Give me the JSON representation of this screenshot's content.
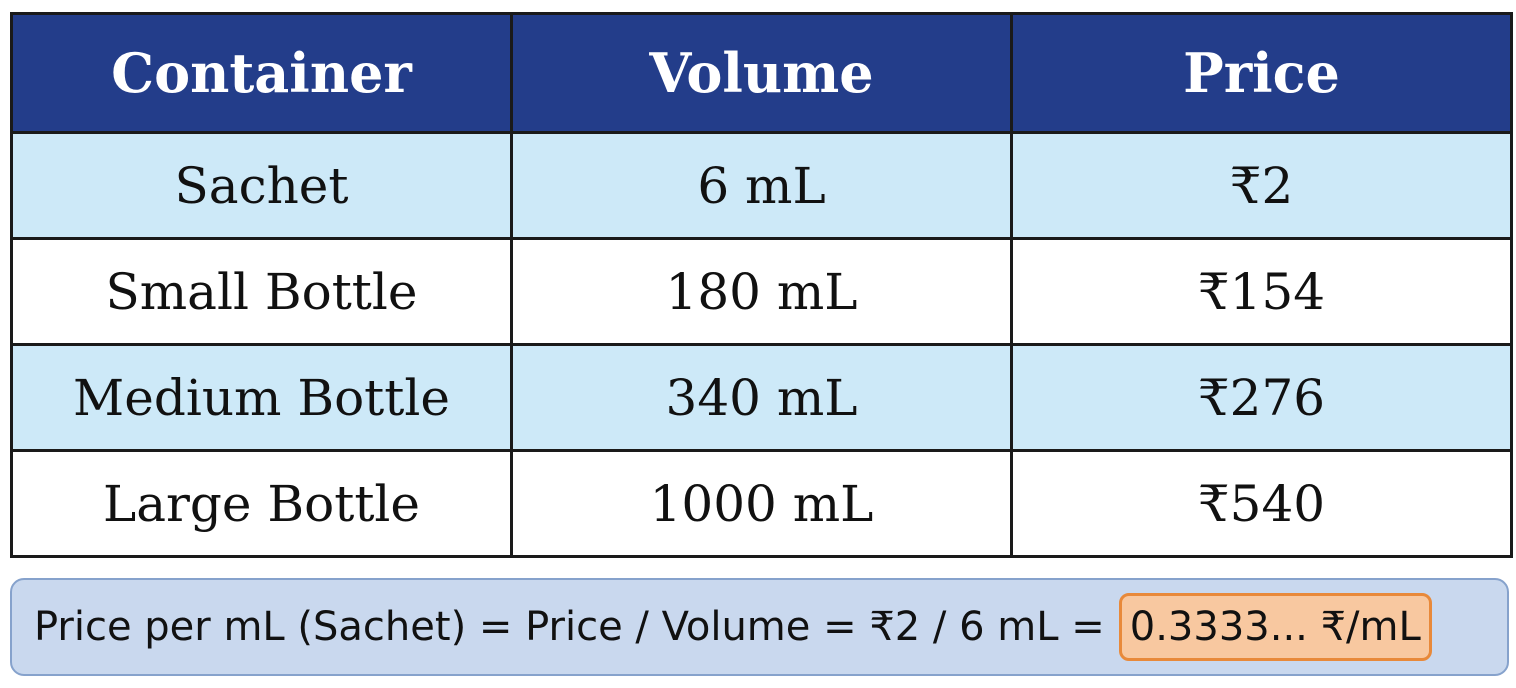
{
  "table": {
    "header": [
      "Container",
      "Volume",
      "Price"
    ],
    "rows": [
      [
        "Sachet",
        "6 mL",
        "₹2"
      ],
      [
        "Small Bottle",
        "180 mL",
        "₹154"
      ],
      [
        "Medium Bottle",
        "340 mL",
        "₹276"
      ],
      [
        "Large Bottle",
        "1000 mL",
        "₹540"
      ]
    ]
  },
  "formula": {
    "text": "Price per mL (Sachet) = Price / Volume = ₹2 / 6 mL =",
    "result": "0.3333... ₹/mL"
  }
}
